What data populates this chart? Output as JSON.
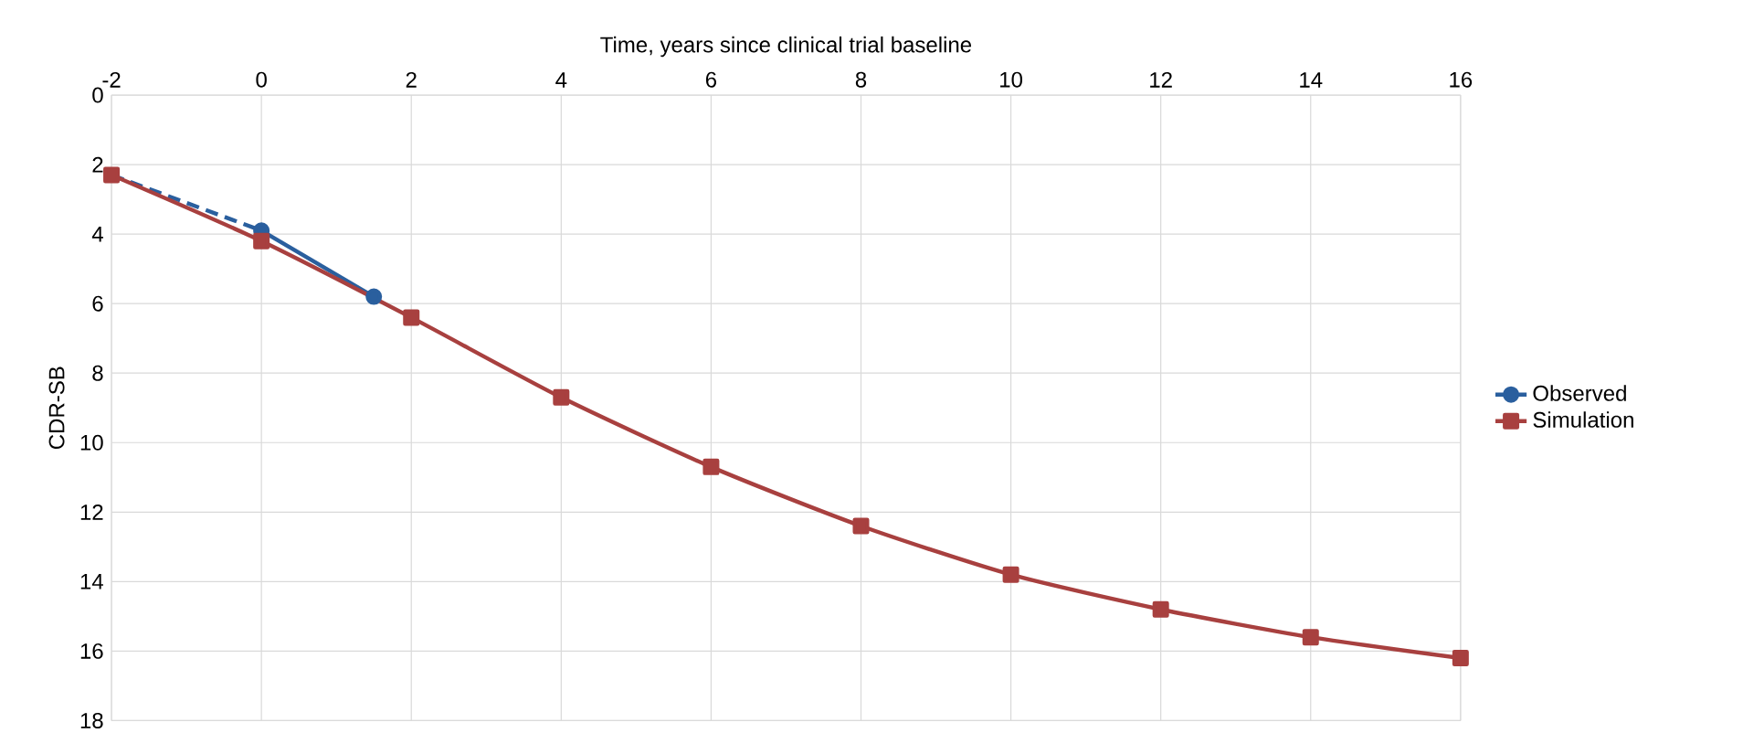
{
  "chart_data": {
    "type": "line",
    "xlabel": "Time, years since clinical trial baseline",
    "ylabel": "CDR-SB",
    "xlim": [
      -2,
      16
    ],
    "xticks": [
      -2,
      0,
      2,
      4,
      6,
      8,
      10,
      12,
      14,
      16
    ],
    "ylim": [
      18,
      0
    ],
    "yticks": [
      0,
      2,
      4,
      6,
      8,
      10,
      12,
      14,
      16,
      18
    ],
    "grid": true,
    "legend": "right",
    "series": [
      {
        "name": "Observed",
        "color": "#2a5f9e",
        "x": [
          0,
          1.5
        ],
        "values": [
          3.9,
          5.8
        ],
        "marker": "circle",
        "line_style": "solid"
      },
      {
        "color": "#2a5f9e",
        "x": [
          -2,
          0
        ],
        "values": [
          2.3,
          3.9
        ],
        "marker": "none",
        "line_style": "dashed"
      },
      {
        "name": "Simulation",
        "color": "#a8403f",
        "x": [
          -2,
          0,
          2,
          4,
          6,
          8,
          10,
          12,
          14,
          16
        ],
        "values": [
          2.3,
          4.2,
          6.4,
          8.7,
          10.7,
          12.4,
          13.8,
          14.8,
          15.6,
          16.2
        ],
        "marker": "square",
        "line_style": "solid"
      }
    ]
  }
}
